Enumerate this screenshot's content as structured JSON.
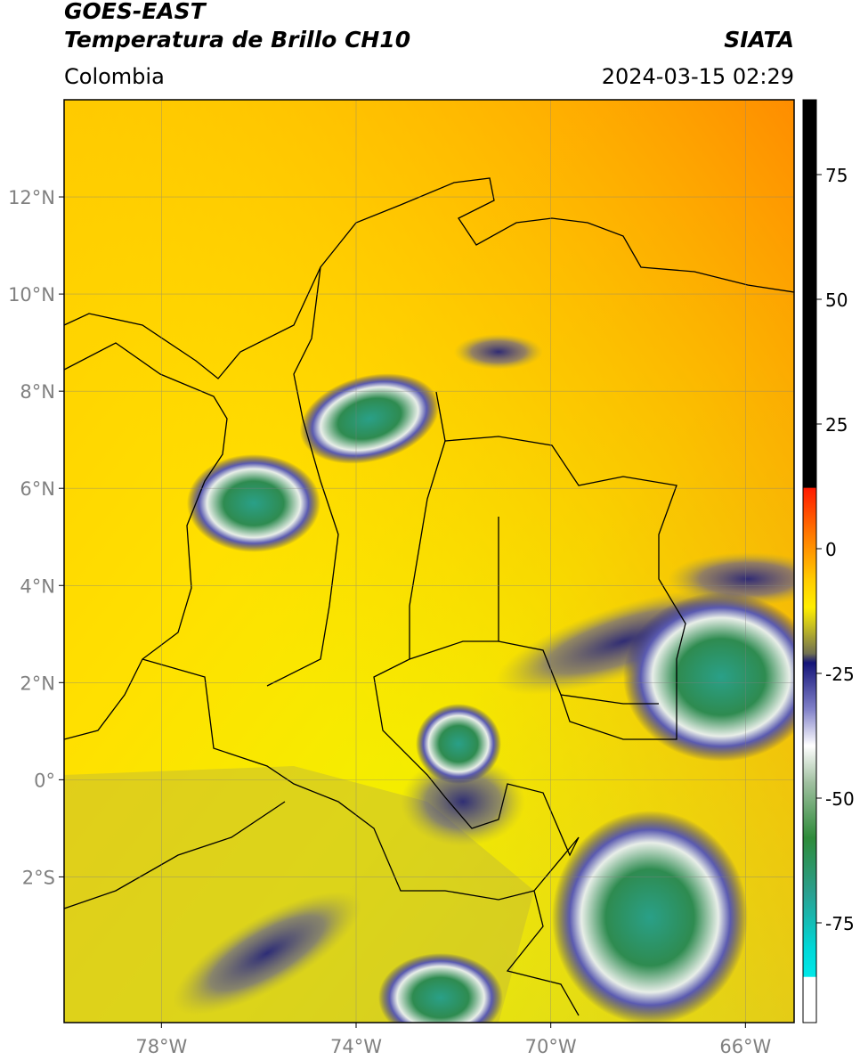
{
  "header": {
    "satellite": "GOES-EAST",
    "product": "Temperatura de Brillo CH10",
    "region": "Colombia",
    "agency": "SIATA",
    "datetime": "2024-03-15 02:29"
  },
  "map": {
    "lat_ticks": [
      "12°N",
      "10°N",
      "8°N",
      "6°N",
      "4°N",
      "2°N",
      "0°",
      "2°S"
    ],
    "lon_ticks": [
      "78°W",
      "74°W",
      "70°W",
      "66°W"
    ],
    "lat_values": [
      12,
      10,
      8,
      6,
      4,
      2,
      0,
      -2
    ],
    "lon_values": [
      -78,
      -74,
      -70,
      -66
    ],
    "extent": {
      "lon_min": -80,
      "lon_max": -65,
      "lat_min": -5,
      "lat_max": 14
    }
  },
  "colorbar": {
    "ticks": [
      "75",
      "50",
      "25",
      "0",
      "-25",
      "-50",
      "-75"
    ],
    "tick_values": [
      75,
      50,
      25,
      0,
      -25,
      -50,
      -75
    ],
    "range": [
      -95,
      90
    ],
    "colors": {
      "hot": "#000000",
      "red": "#ff2200",
      "orange": "#ff9900",
      "yellow": "#ffee00",
      "olive": "#b8b020",
      "navy": "#141478",
      "white": "#ffffff",
      "green": "#2e8b3a",
      "teal": "#2ab0a0",
      "cyan": "#00e5e5"
    }
  }
}
